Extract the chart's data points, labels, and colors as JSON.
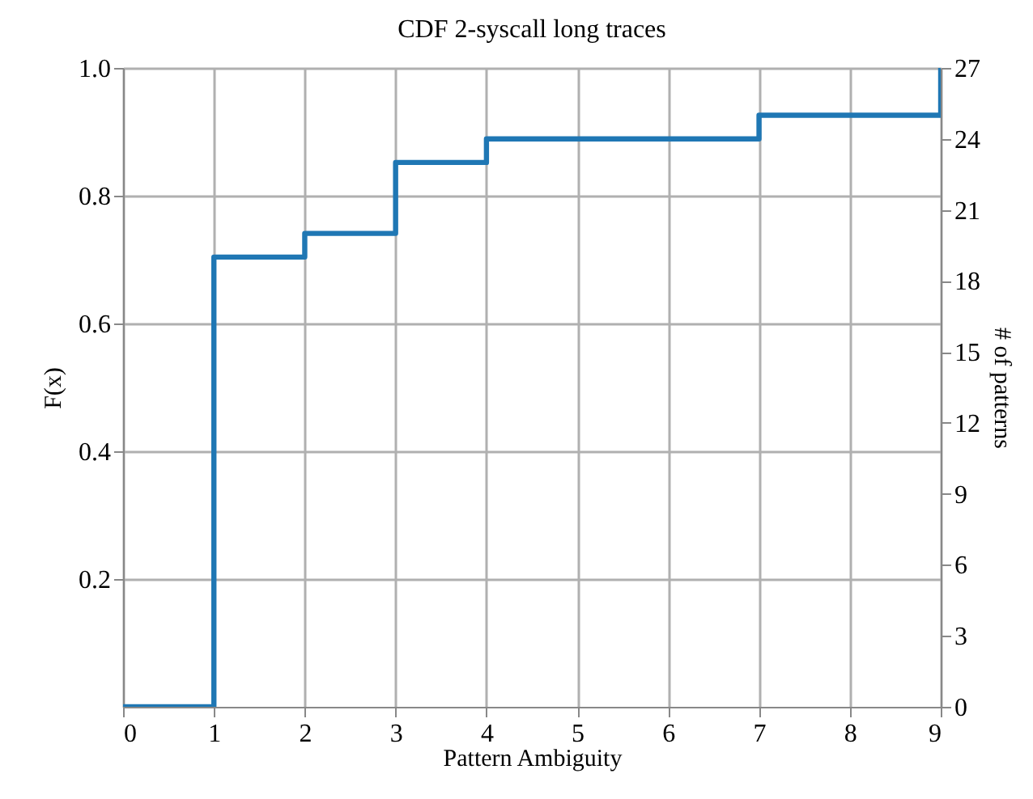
{
  "chart_data": {
    "type": "step",
    "title": "CDF 2-syscall long traces",
    "xlabel": "Pattern Ambiguity",
    "ylabel": "F(x)",
    "y2label": "# of patterns",
    "x": [
      0,
      1,
      2,
      3,
      4,
      7,
      9
    ],
    "series": [
      {
        "color": "#1f77b4",
        "values": [
          0,
          0.704,
          0.741,
          0.852,
          0.889,
          0.926,
          1.0
        ]
      }
    ],
    "xlim": [
      0,
      9
    ],
    "xticks": [
      0,
      1,
      2,
      3,
      4,
      5,
      6,
      7,
      8,
      9
    ],
    "ylim": [
      0,
      1
    ],
    "yticks": [
      0.2,
      0.4,
      0.6,
      0.8,
      {
        "value": 1,
        "label": "1.0"
      }
    ],
    "y2lim": [
      0,
      27
    ],
    "y2ticks": [
      0,
      3,
      6,
      9,
      12,
      15,
      18,
      21,
      24,
      27
    ],
    "grid": true,
    "marker": "none",
    "line_style": "solid"
  }
}
